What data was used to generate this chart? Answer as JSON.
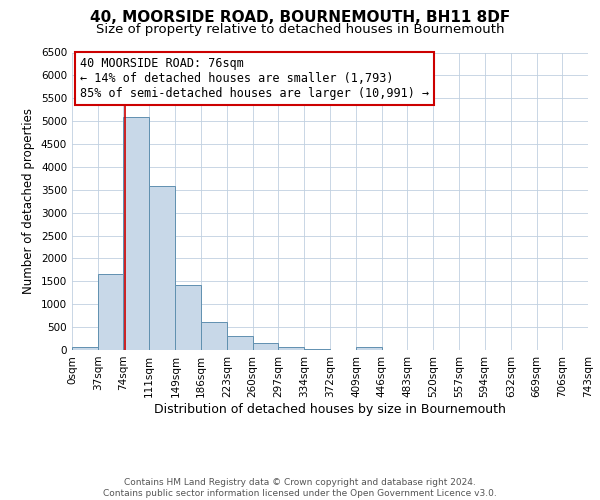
{
  "title": "40, MOORSIDE ROAD, BOURNEMOUTH, BH11 8DF",
  "subtitle": "Size of property relative to detached houses in Bournemouth",
  "xlabel": "Distribution of detached houses by size in Bournemouth",
  "ylabel": "Number of detached properties",
  "footer_line1": "Contains HM Land Registry data © Crown copyright and database right 2024.",
  "footer_line2": "Contains public sector information licensed under the Open Government Licence v3.0.",
  "bin_edges": [
    0,
    37,
    74,
    111,
    149,
    186,
    223,
    260,
    297,
    334,
    372,
    409,
    446,
    483,
    520,
    557,
    594,
    632,
    669,
    706,
    743
  ],
  "bin_labels": [
    "0sqm",
    "37sqm",
    "74sqm",
    "111sqm",
    "149sqm",
    "186sqm",
    "223sqm",
    "260sqm",
    "297sqm",
    "334sqm",
    "372sqm",
    "409sqm",
    "446sqm",
    "483sqm",
    "520sqm",
    "557sqm",
    "594sqm",
    "632sqm",
    "669sqm",
    "706sqm",
    "743sqm"
  ],
  "counts": [
    75,
    1650,
    5080,
    3580,
    1420,
    615,
    305,
    150,
    75,
    25,
    10,
    55,
    0,
    0,
    0,
    0,
    0,
    0,
    0,
    0
  ],
  "bar_color": "#c8d8e8",
  "bar_edge_color": "#6090b0",
  "property_line_x": 76,
  "annotation_line1": "40 MOORSIDE ROAD: 76sqm",
  "annotation_line2": "← 14% of detached houses are smaller (1,793)",
  "annotation_line3": "85% of semi-detached houses are larger (10,991) →",
  "annotation_box_color": "#ffffff",
  "annotation_box_edge_color": "#cc0000",
  "property_line_color": "#cc0000",
  "ylim": [
    0,
    6500
  ],
  "yticks": [
    0,
    500,
    1000,
    1500,
    2000,
    2500,
    3000,
    3500,
    4000,
    4500,
    5000,
    5500,
    6000,
    6500
  ],
  "background_color": "#ffffff",
  "grid_color": "#c0d0e0",
  "title_fontsize": 11,
  "subtitle_fontsize": 9.5,
  "xlabel_fontsize": 9,
  "ylabel_fontsize": 8.5,
  "tick_fontsize": 7.5,
  "annotation_fontsize": 8.5,
  "footer_fontsize": 6.5
}
